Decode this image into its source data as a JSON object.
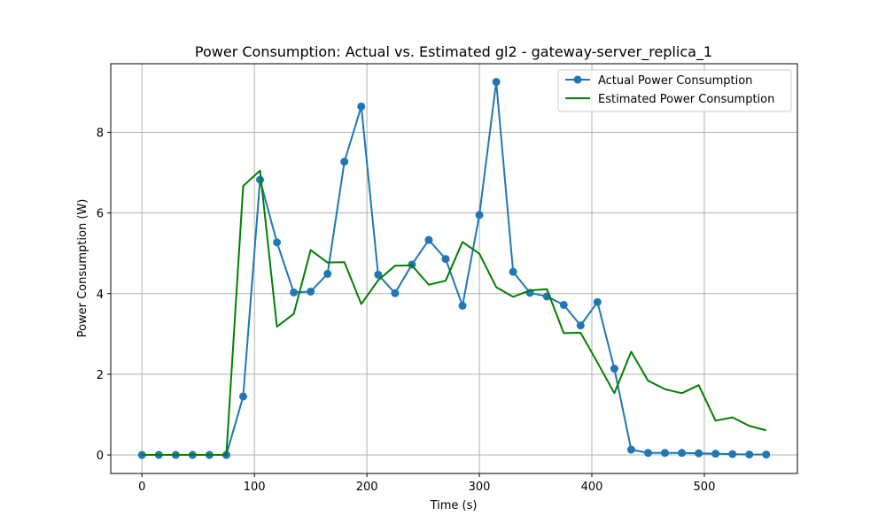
{
  "chart_data": {
    "type": "line",
    "title": "Power Consumption: Actual vs. Estimated gl2 - gateway-server_replica_1",
    "xlabel": "Time (s)",
    "ylabel": "Power Consumption (W)",
    "xlim": [
      -27.75,
      582.75
    ],
    "ylim": [
      -0.46,
      9.7
    ],
    "xticks": [
      0,
      100,
      200,
      300,
      400,
      500
    ],
    "yticks": [
      0,
      2,
      4,
      6,
      8
    ],
    "grid": true,
    "legend_position": "top-right",
    "x": [
      0,
      15,
      30,
      45,
      60,
      75,
      90,
      105,
      120,
      135,
      150,
      165,
      180,
      195,
      210,
      225,
      240,
      255,
      270,
      285,
      300,
      315,
      330,
      345,
      360,
      375,
      390,
      405,
      420,
      435,
      450,
      465,
      480,
      495,
      510,
      525,
      540,
      555
    ],
    "series": [
      {
        "name": "Actual Power Consumption",
        "color": "#1f77b4",
        "marker": "circle",
        "values": [
          0,
          0,
          0,
          0,
          0,
          0,
          1.45,
          6.82,
          5.27,
          4.03,
          4.05,
          4.49,
          7.27,
          8.64,
          4.47,
          4.01,
          4.72,
          5.33,
          4.86,
          3.7,
          5.95,
          9.25,
          4.54,
          4.02,
          3.93,
          3.72,
          3.21,
          3.79,
          2.14,
          0.13,
          0.05,
          0.05,
          0.05,
          0.04,
          0.03,
          0.02,
          0.01,
          0.01
        ]
      },
      {
        "name": "Estimated Power Consumption",
        "color": "#008000",
        "marker": "none",
        "values": [
          0,
          0,
          0,
          0,
          0,
          0,
          6.67,
          7.05,
          3.18,
          3.5,
          5.08,
          4.77,
          4.78,
          3.74,
          4.33,
          4.69,
          4.7,
          4.22,
          4.32,
          5.28,
          4.99,
          4.16,
          3.92,
          4.08,
          4.11,
          3.02,
          3.03,
          2.29,
          1.53,
          2.56,
          1.84,
          1.63,
          1.53,
          1.73,
          0.85,
          0.93,
          0.72,
          0.61
        ]
      }
    ]
  }
}
